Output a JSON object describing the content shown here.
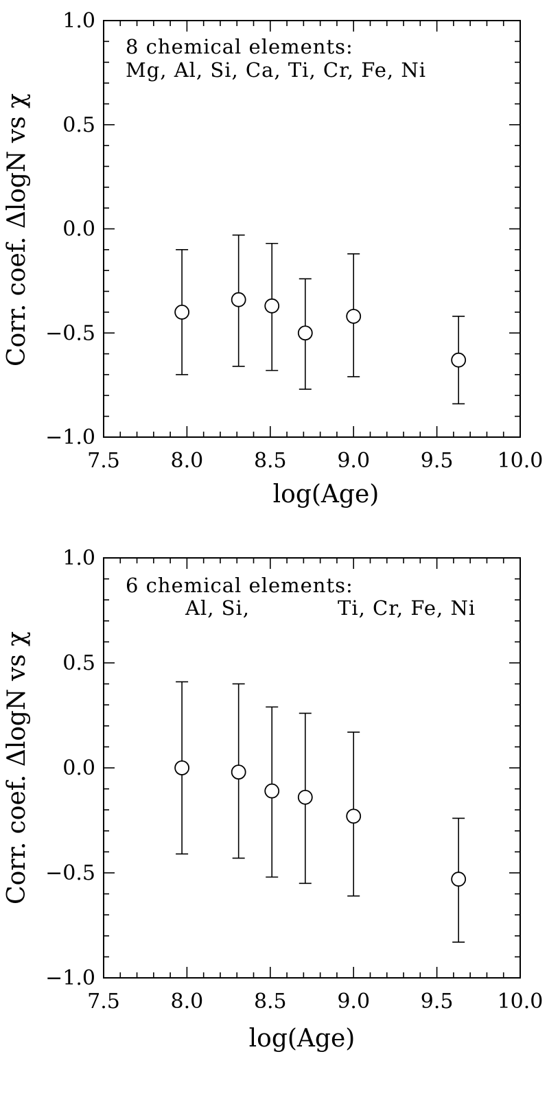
{
  "chart_data": [
    {
      "type": "scatter",
      "xlabel": "log(Age)",
      "ylabel": "Corr. coef. ΔlogN vs χ",
      "xlim": [
        7.5,
        10.0
      ],
      "ylim": [
        -1.0,
        1.0
      ],
      "x_ticks": [
        "7.5",
        "8.0",
        "8.5",
        "9.0",
        "9.5",
        "10.0"
      ],
      "y_ticks": [
        "1.0",
        "0.5",
        "0.0",
        "−0.5",
        "−1.0"
      ],
      "annotation_line1": "8 chemical elements:",
      "annotation_line2": "Mg, Al, Si, Ca, Ti, Cr, Fe, Ni",
      "grid": false,
      "points": [
        {
          "x": 7.97,
          "y": -0.4,
          "err_low": -0.7,
          "err_high": -0.1
        },
        {
          "x": 8.31,
          "y": -0.34,
          "err_low": -0.66,
          "err_high": -0.03
        },
        {
          "x": 8.51,
          "y": -0.37,
          "err_low": -0.68,
          "err_high": -0.07
        },
        {
          "x": 8.71,
          "y": -0.5,
          "err_low": -0.77,
          "err_high": -0.24
        },
        {
          "x": 9.0,
          "y": -0.42,
          "err_low": -0.71,
          "err_high": -0.12
        },
        {
          "x": 9.63,
          "y": -0.63,
          "err_low": -0.84,
          "err_high": -0.42
        }
      ]
    },
    {
      "type": "scatter",
      "xlabel": "log(Age)",
      "ylabel": "Corr. coef. ΔlogN vs χ",
      "xlim": [
        7.5,
        10.0
      ],
      "ylim": [
        -1.0,
        1.0
      ],
      "x_ticks": [
        "7.5",
        "8.0",
        "8.5",
        "9.0",
        "9.5",
        "10.0"
      ],
      "y_ticks": [
        "1.0",
        "0.5",
        "0.0",
        "−0.5",
        "−1.0"
      ],
      "annotation_line1": "6 chemical elements:",
      "annotation_line2a": "Al, Si,",
      "annotation_line2b": "Ti, Cr, Fe, Ni",
      "grid": false,
      "points": [
        {
          "x": 7.97,
          "y": 0.0,
          "err_low": -0.41,
          "err_high": 0.41
        },
        {
          "x": 8.31,
          "y": -0.02,
          "err_low": -0.43,
          "err_high": 0.4
        },
        {
          "x": 8.51,
          "y": -0.11,
          "err_low": -0.52,
          "err_high": 0.29
        },
        {
          "x": 8.71,
          "y": -0.14,
          "err_low": -0.55,
          "err_high": 0.26
        },
        {
          "x": 9.0,
          "y": -0.23,
          "err_low": -0.61,
          "err_high": 0.17
        },
        {
          "x": 9.63,
          "y": -0.53,
          "err_low": -0.83,
          "err_high": -0.24
        }
      ]
    }
  ]
}
